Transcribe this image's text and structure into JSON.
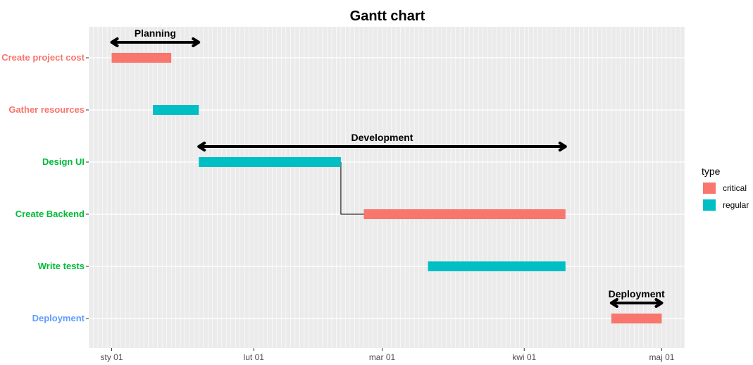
{
  "chart_data": {
    "type": "gantt",
    "title": "Gantt chart",
    "tasks": [
      {
        "name": "Create project cost",
        "start": "2023-01-01",
        "end": "2023-01-14",
        "type": "critical",
        "label_color": "#F8766D"
      },
      {
        "name": "Gather resources",
        "start": "2023-01-10",
        "end": "2023-01-20",
        "type": "regular",
        "label_color": "#F8766D"
      },
      {
        "name": "Design UI",
        "start": "2023-01-20",
        "end": "2023-02-20",
        "type": "regular",
        "label_color": "#00BA38"
      },
      {
        "name": "Create Backend",
        "start": "2023-02-25",
        "end": "2023-04-10",
        "type": "critical",
        "label_color": "#00BA38"
      },
      {
        "name": "Write tests",
        "start": "2023-03-11",
        "end": "2023-04-10",
        "type": "regular",
        "label_color": "#00BA38"
      },
      {
        "name": "Deployment",
        "start": "2023-04-20",
        "end": "2023-05-01",
        "type": "critical",
        "label_color": "#619CFF"
      }
    ],
    "phases": [
      {
        "label": "Planning",
        "start": "2023-01-01",
        "end": "2023-01-20",
        "row": "Create project cost"
      },
      {
        "label": "Development",
        "start": "2023-01-20",
        "end": "2023-04-10",
        "row": "Design UI"
      },
      {
        "label": "Deployment",
        "start": "2023-04-20",
        "end": "2023-05-01",
        "row": "Deployment"
      }
    ],
    "dependencies": [
      {
        "from": "Design UI",
        "to": "Create Backend"
      }
    ],
    "x_ticks": [
      {
        "date": "2023-01-01",
        "label": "sty 01"
      },
      {
        "date": "2023-02-01",
        "label": "lut 01"
      },
      {
        "date": "2023-03-01",
        "label": "mar 01"
      },
      {
        "date": "2023-04-01",
        "label": "kwi 01"
      },
      {
        "date": "2023-05-01",
        "label": "maj 01"
      }
    ],
    "xlim": [
      "2022-12-27",
      "2023-05-06"
    ],
    "grid": true,
    "legend": {
      "title": "type",
      "position": "right",
      "items": [
        {
          "label": "critical",
          "color": "#F8766D"
        },
        {
          "label": "regular",
          "color": "#00BFC4"
        }
      ]
    }
  }
}
